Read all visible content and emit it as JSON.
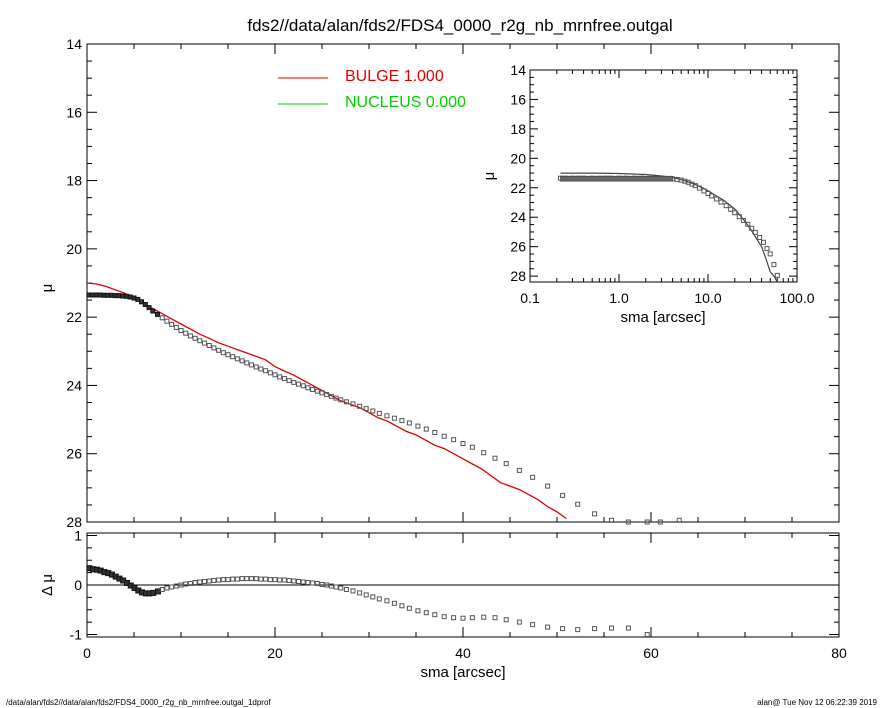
{
  "title": "fds2//data/alan/fds2/FDS4_0000_r2g_nb_mrnfree.outgal",
  "footer_left": "/data/alan/fds2//data/alan/fds2/FDS4_0000_r2g_nb_mrnfree.outgal_1dprof",
  "footer_right": "alan@  Tue Nov 12 06:22:39 2019",
  "colors": {
    "bulge": "#e00000",
    "nucleus": "#00cc00",
    "data": "#555555",
    "axis": "#000000"
  },
  "chart_data": [
    {
      "id": "main",
      "type": "scatter",
      "title": "fds2//data/alan/fds2/FDS4_0000_r2g_nb_mrnfree.outgal",
      "ylabel": "μ",
      "xlim": [
        0,
        80
      ],
      "ylim": [
        28,
        14
      ],
      "y_inverted": true,
      "yticks": [
        14,
        16,
        18,
        20,
        22,
        24,
        26,
        28
      ],
      "legend": [
        {
          "label": "BULGE  1.000",
          "color": "#e00000"
        },
        {
          "label": "NUCLEUS  0.000",
          "color": "#00cc00"
        }
      ],
      "legend_position": "top-center",
      "series": [
        {
          "name": "data",
          "style": "squares",
          "x": [
            0.2,
            0.6,
            1.0,
            1.4,
            1.8,
            2.2,
            2.6,
            3.0,
            3.4,
            3.8,
            4.2,
            4.6,
            5.0,
            5.4,
            5.8,
            6.2,
            6.6,
            7.0,
            7.5,
            8.0,
            8.5,
            9.0,
            9.5,
            10.0,
            10.5,
            11.0,
            11.5,
            12.0,
            12.5,
            13.0,
            13.5,
            14.0,
            14.5,
            15.0,
            15.5,
            16.0,
            16.5,
            17.0,
            17.5,
            18.0,
            18.5,
            19.0,
            19.5,
            20.0,
            20.5,
            21.0,
            21.5,
            22.0,
            22.5,
            23.0,
            23.5,
            24.0,
            24.5,
            25.0,
            25.5,
            26.0,
            26.5,
            27.0,
            27.6,
            28.3,
            29.0,
            29.7,
            30.4,
            31.1,
            31.9,
            32.7,
            33.5,
            34.3,
            35.2,
            36.1,
            37.0,
            38.0,
            39.0,
            40.0,
            41.0,
            42.2,
            43.4,
            44.6,
            46.0,
            47.4,
            49.0,
            50.6,
            52.2,
            54.0,
            55.8,
            57.6,
            59.6,
            61.0,
            63.0
          ],
          "y": [
            21.35,
            21.35,
            21.35,
            21.35,
            21.36,
            21.36,
            21.36,
            21.37,
            21.37,
            21.38,
            21.39,
            21.41,
            21.44,
            21.48,
            21.55,
            21.63,
            21.72,
            21.82,
            21.92,
            22.02,
            22.12,
            22.21,
            22.3,
            22.39,
            22.47,
            22.55,
            22.62,
            22.69,
            22.76,
            22.83,
            22.9,
            22.97,
            23.04,
            23.1,
            23.16,
            23.22,
            23.28,
            23.34,
            23.4,
            23.46,
            23.52,
            23.57,
            23.63,
            23.69,
            23.75,
            23.8,
            23.86,
            23.91,
            23.96,
            24.01,
            24.07,
            24.12,
            24.17,
            24.22,
            24.27,
            24.32,
            24.37,
            24.42,
            24.48,
            24.54,
            24.61,
            24.68,
            24.75,
            24.82,
            24.89,
            24.96,
            25.03,
            25.1,
            25.19,
            25.28,
            25.38,
            25.49,
            25.59,
            25.7,
            25.81,
            25.97,
            26.13,
            26.29,
            26.49,
            26.69,
            26.95,
            27.22,
            27.48,
            27.76,
            27.95,
            28.0,
            28.0,
            28.0,
            27.95
          ]
        },
        {
          "name": "BULGE  1.000",
          "style": "line",
          "color": "#e00000",
          "x": [
            0,
            1,
            2,
            3,
            4,
            5,
            6,
            7,
            8,
            9,
            10,
            11,
            12,
            13,
            14,
            15,
            16,
            17,
            18,
            19,
            20,
            21,
            22,
            23,
            24,
            25,
            26,
            27,
            28,
            29,
            30,
            31,
            32,
            33,
            34,
            35,
            36,
            37,
            38,
            39,
            40,
            41,
            42,
            43,
            44,
            45,
            46,
            47,
            48,
            49,
            50,
            51
          ],
          "y": [
            21.0,
            21.03,
            21.1,
            21.2,
            21.3,
            21.45,
            21.6,
            21.75,
            21.9,
            22.05,
            22.2,
            22.35,
            22.5,
            22.62,
            22.75,
            22.85,
            22.95,
            23.05,
            23.15,
            23.25,
            23.45,
            23.58,
            23.7,
            23.85,
            24.0,
            24.15,
            24.3,
            24.45,
            24.55,
            24.65,
            24.8,
            24.95,
            25.05,
            25.2,
            25.35,
            25.45,
            25.6,
            25.75,
            25.85,
            26.0,
            26.15,
            26.3,
            26.45,
            26.65,
            26.85,
            26.95,
            27.05,
            27.2,
            27.35,
            27.55,
            27.7,
            27.9
          ]
        }
      ]
    },
    {
      "id": "residual",
      "type": "scatter",
      "xlabel": "sma [arcsec]",
      "ylabel": "Δ μ",
      "xlim": [
        0,
        80
      ],
      "ylim": [
        -1.05,
        1.05
      ],
      "xticks": [
        0,
        20,
        40,
        60,
        80
      ],
      "yticks": [
        -1,
        0,
        1
      ],
      "zero_line": true,
      "series": [
        {
          "name": "residual",
          "style": "squares",
          "x": [
            0.2,
            0.6,
            1.0,
            1.4,
            1.8,
            2.2,
            2.6,
            3.0,
            3.4,
            3.8,
            4.2,
            4.6,
            5.0,
            5.4,
            5.8,
            6.2,
            6.6,
            7.0,
            7.5,
            8.0,
            8.5,
            9.0,
            9.5,
            10.0,
            10.5,
            11.0,
            11.5,
            12.0,
            12.5,
            13.0,
            13.5,
            14.0,
            14.5,
            15.0,
            15.5,
            16.0,
            16.5,
            17.0,
            17.5,
            18.0,
            18.5,
            19.0,
            19.5,
            20.0,
            20.5,
            21.0,
            21.5,
            22.0,
            22.5,
            23.0,
            23.5,
            24.0,
            24.5,
            25.0,
            25.5,
            26.0,
            26.5,
            27.0,
            27.6,
            28.3,
            29.0,
            29.7,
            30.4,
            31.1,
            31.9,
            32.7,
            33.5,
            34.3,
            35.2,
            36.1,
            37.0,
            38.0,
            39.0,
            40.0,
            41.0,
            42.2,
            43.4,
            44.6,
            46.0,
            47.4,
            49.0,
            50.6,
            52.2,
            54.0,
            55.8,
            57.6,
            59.6
          ],
          "y": [
            0.35,
            0.33,
            0.32,
            0.3,
            0.27,
            0.25,
            0.22,
            0.18,
            0.14,
            0.1,
            0.05,
            0.0,
            -0.05,
            -0.1,
            -0.14,
            -0.16,
            -0.16,
            -0.15,
            -0.12,
            -0.09,
            -0.06,
            -0.04,
            -0.02,
            0.0,
            0.02,
            0.03,
            0.05,
            0.06,
            0.07,
            0.08,
            0.09,
            0.1,
            0.11,
            0.11,
            0.12,
            0.12,
            0.13,
            0.13,
            0.13,
            0.13,
            0.12,
            0.12,
            0.11,
            0.11,
            0.1,
            0.1,
            0.09,
            0.08,
            0.07,
            0.06,
            0.05,
            0.04,
            0.03,
            0.01,
            0.0,
            -0.02,
            -0.04,
            -0.06,
            -0.09,
            -0.12,
            -0.16,
            -0.2,
            -0.24,
            -0.28,
            -0.32,
            -0.37,
            -0.42,
            -0.47,
            -0.52,
            -0.56,
            -0.6,
            -0.64,
            -0.66,
            -0.67,
            -0.66,
            -0.65,
            -0.66,
            -0.7,
            -0.75,
            -0.8,
            -0.85,
            -0.88,
            -0.9,
            -0.88,
            -0.87,
            -0.87,
            -1.0
          ]
        }
      ]
    },
    {
      "id": "inset",
      "type": "scatter",
      "xlabel": "sma [arcsec]",
      "ylabel": "μ",
      "x_scale": "log",
      "xlim": [
        0.1,
        100
      ],
      "ylim": [
        28.4,
        14
      ],
      "y_inverted": true,
      "xticks": [
        0.1,
        1.0,
        10.0,
        100.0
      ],
      "xtick_labels": [
        "0.1",
        "1.0",
        "10.0",
        "100.0"
      ],
      "yticks": [
        14,
        16,
        18,
        20,
        22,
        24,
        26,
        28
      ],
      "series": [
        {
          "name": "data",
          "style": "squares",
          "x": [
            0.22,
            0.25,
            0.3,
            0.35,
            0.4,
            0.5,
            0.6,
            0.7,
            0.8,
            1.0,
            1.2,
            1.5,
            1.8,
            2.2,
            2.6,
            3.0,
            3.5,
            4.0,
            4.5,
            5.0,
            5.5,
            6.0,
            6.6,
            7.2,
            8.0,
            9.0,
            10.0,
            11.0,
            12.5,
            14.0,
            16.0,
            18.0,
            20.0,
            22.5,
            25.0,
            28.0,
            31.0,
            34.0,
            38.0,
            42.0,
            46.0,
            50.0,
            55.0,
            60.0
          ],
          "y": [
            21.35,
            21.35,
            21.35,
            21.35,
            21.35,
            21.35,
            21.35,
            21.35,
            21.35,
            21.35,
            21.35,
            21.35,
            21.35,
            21.36,
            21.36,
            21.37,
            21.38,
            21.4,
            21.44,
            21.48,
            21.55,
            21.63,
            21.75,
            21.85,
            22.02,
            22.21,
            22.39,
            22.55,
            22.76,
            22.97,
            23.22,
            23.46,
            23.69,
            23.96,
            24.22,
            24.48,
            24.75,
            25.03,
            25.38,
            25.7,
            26.13,
            26.49,
            27.22,
            27.95
          ]
        },
        {
          "name": "BULGE  1.000",
          "style": "line",
          "color": "#444444",
          "x": [
            0.22,
            0.5,
            1.0,
            2.0,
            3.0,
            4.0,
            5.0,
            6.0,
            7.0,
            8.0,
            10.0,
            12.0,
            15.0,
            20.0,
            25.0,
            30.0,
            35.0,
            40.0,
            45.0,
            50.0,
            55.0,
            60.0
          ],
          "y": [
            21.0,
            21.0,
            21.03,
            21.1,
            21.2,
            21.3,
            21.45,
            21.6,
            21.75,
            21.9,
            22.2,
            22.5,
            22.85,
            23.45,
            24.15,
            24.8,
            25.45,
            26.0,
            26.85,
            27.7,
            28.0,
            28.4
          ]
        }
      ]
    }
  ]
}
